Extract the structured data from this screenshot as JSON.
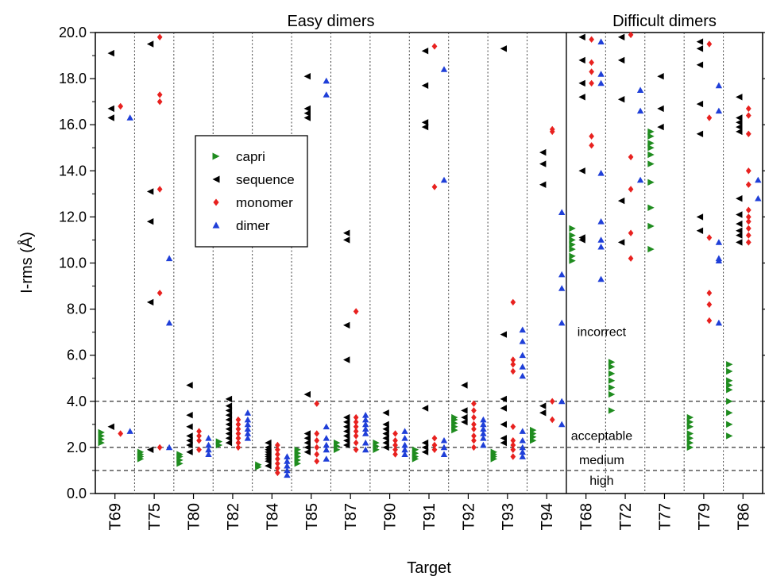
{
  "chart_data": {
    "type": "scatter",
    "xlabel": "Target",
    "ylabel": "I-rms (Å)",
    "ylim": [
      0,
      20
    ],
    "yticks": [
      "0.0",
      "2.0",
      "4.0",
      "6.0",
      "8.0",
      "10.0",
      "12.0",
      "14.0",
      "16.0",
      "18.0",
      "20.0"
    ],
    "categories": [
      "T69",
      "T75",
      "T80",
      "T82",
      "T84",
      "T85",
      "T87",
      "T90",
      "T91",
      "T92",
      "T93",
      "T94",
      "T68",
      "T72",
      "T77",
      "T79",
      "T86"
    ],
    "groups": [
      {
        "label": "Easy dimers",
        "categories": [
          "T69",
          "T75",
          "T80",
          "T82",
          "T84",
          "T85",
          "T87",
          "T90",
          "T91",
          "T92",
          "T93",
          "T94"
        ]
      },
      {
        "label": "Difficult dimers",
        "categories": [
          "T68",
          "T72",
          "T77",
          "T79",
          "T86"
        ]
      }
    ],
    "thresholds": [
      {
        "value": 4.0,
        "label": "acceptable"
      },
      {
        "value": 2.0,
        "label": "medium"
      },
      {
        "value": 1.0,
        "label": "high"
      }
    ],
    "region_labels": [
      {
        "label": "incorrect",
        "y": 7.0
      },
      {
        "label": "acceptable",
        "y": 2.5
      },
      {
        "label": "medium",
        "y": 1.45
      },
      {
        "label": "high",
        "y": 0.55
      }
    ],
    "legend": {
      "position": "upper-left"
    },
    "series": [
      {
        "name": "capri",
        "color": "#1f8c1f",
        "marker": "triangle-right",
        "data": {
          "T69": [
            2.2,
            2.35,
            2.5,
            2.65
          ],
          "T75": [
            1.5,
            1.6,
            1.7,
            1.8
          ],
          "T80": [
            1.3,
            1.45,
            1.6,
            1.7
          ],
          "T82": [
            2.1,
            2.25
          ],
          "T84": [
            1.15,
            1.25
          ],
          "T85": [
            1.3,
            1.45,
            1.6,
            1.75,
            1.9
          ],
          "T87": [
            1.9,
            2.05,
            2.2
          ],
          "T90": [
            1.9,
            2.05,
            2.2
          ],
          "T91": [
            1.5,
            1.6,
            1.75,
            1.9
          ],
          "T92": [
            2.75,
            2.9,
            3.05,
            3.2,
            3.3
          ],
          "T93": [
            1.5,
            1.6,
            1.7,
            1.8
          ],
          "T94": [
            2.3,
            2.45,
            2.6,
            2.75
          ],
          "T68": [
            10.1,
            10.3,
            10.6,
            10.8,
            11.0,
            11.2,
            11.5
          ],
          "T72": [
            3.6,
            4.3,
            4.6,
            4.9,
            5.2,
            5.5,
            5.7
          ],
          "T77": [
            10.6,
            11.6,
            12.4,
            13.5,
            14.3,
            14.7,
            15.0,
            15.2,
            15.5,
            15.7
          ],
          "T79": [
            2.0,
            2.2,
            2.4,
            2.6,
            2.9,
            3.1,
            3.3
          ],
          "T86": [
            2.5,
            3.0,
            3.5,
            4.0,
            4.5,
            4.7,
            4.9,
            5.3,
            5.6
          ]
        }
      },
      {
        "name": "sequence",
        "color": "#000000",
        "marker": "triangle-left",
        "data": {
          "T69": [
            2.9,
            16.3,
            16.7,
            19.1
          ],
          "T75": [
            1.9,
            8.3,
            11.8,
            13.1,
            19.5
          ],
          "T80": [
            1.8,
            2.1,
            2.3,
            2.5,
            2.9,
            3.4,
            4.7
          ],
          "T82": [
            2.2,
            2.4,
            2.6,
            2.8,
            3.0,
            3.2,
            3.4,
            3.6,
            3.8,
            4.1
          ],
          "T84": [
            1.2,
            1.4,
            1.5,
            1.6,
            1.7,
            1.8,
            1.9,
            2.0,
            2.2
          ],
          "T85": [
            1.8,
            2.0,
            2.2,
            2.4,
            2.6,
            4.3,
            16.3,
            16.5,
            16.7,
            18.1
          ],
          "T87": [
            2.1,
            2.3,
            2.5,
            2.7,
            2.9,
            3.1,
            3.3,
            5.8,
            7.3,
            11.0,
            11.3
          ],
          "T90": [
            2.0,
            2.2,
            2.4,
            2.6,
            2.8,
            3.0,
            3.5
          ],
          "T91": [
            1.8,
            2.0,
            2.2,
            3.7,
            15.9,
            16.1,
            17.7,
            19.2
          ],
          "T92": [
            3.1,
            3.3,
            3.6,
            4.7
          ],
          "T93": [
            2.2,
            2.4,
            3.0,
            3.7,
            4.1,
            6.9,
            19.3
          ],
          "T94": [
            3.5,
            3.8,
            13.4,
            14.3,
            14.8
          ],
          "T68": [
            11.0,
            11.1,
            14.0,
            17.2,
            17.8,
            18.8,
            19.8
          ],
          "T72": [
            10.9,
            12.7,
            17.1,
            18.8,
            19.8
          ],
          "T77": [
            15.9,
            16.7,
            18.1
          ],
          "T79": [
            11.4,
            12.0,
            15.6,
            16.9,
            18.6,
            19.3,
            19.6
          ],
          "T86": [
            10.9,
            11.2,
            11.4,
            11.7,
            12.1,
            12.8,
            15.7,
            15.9,
            16.1,
            16.3,
            17.2
          ]
        }
      },
      {
        "name": "monomer",
        "color": "#e8211f",
        "marker": "diamond",
        "data": {
          "T69": [
            2.6,
            16.8
          ],
          "T75": [
            2.0,
            8.7,
            13.2,
            17.0,
            17.3,
            19.8
          ],
          "T80": [
            1.9,
            2.3,
            2.5,
            2.7
          ],
          "T82": [
            2.0,
            2.2,
            2.4,
            2.6,
            2.8,
            3.0,
            3.2
          ],
          "T84": [
            0.9,
            1.1,
            1.3,
            1.5,
            1.7,
            1.9,
            2.1
          ],
          "T85": [
            1.4,
            1.7,
            2.0,
            2.3,
            2.6,
            3.9
          ],
          "T87": [
            1.9,
            2.2,
            2.5,
            2.7,
            2.9,
            3.1,
            3.3,
            7.9
          ],
          "T90": [
            1.7,
            1.9,
            2.1,
            2.3,
            2.6
          ],
          "T91": [
            1.9,
            2.1,
            2.4,
            13.3,
            19.4
          ],
          "T92": [
            2.0,
            2.3,
            2.5,
            2.8,
            3.0,
            3.3,
            3.6,
            3.9
          ],
          "T93": [
            1.6,
            1.9,
            2.1,
            2.3,
            2.9,
            5.3,
            5.6,
            5.8,
            8.3
          ],
          "T94": [
            3.2,
            4.0,
            15.7,
            15.8
          ],
          "T68": [
            15.1,
            15.5,
            17.8,
            18.3,
            18.7,
            19.7
          ],
          "T72": [
            10.2,
            11.3,
            13.2,
            14.6,
            19.9
          ],
          "T79": [
            7.5,
            8.2,
            8.7,
            11.1,
            16.3,
            19.5
          ],
          "T86": [
            10.9,
            11.2,
            11.5,
            11.8,
            12.0,
            12.3,
            13.4,
            14.0,
            15.6,
            16.4,
            16.7
          ]
        }
      },
      {
        "name": "dimer",
        "color": "#1f3fd8",
        "marker": "triangle-up",
        "data": {
          "T69": [
            2.7,
            16.3
          ],
          "T75": [
            2.0,
            7.4,
            10.2
          ],
          "T80": [
            1.7,
            1.9,
            2.1,
            2.4
          ],
          "T82": [
            2.4,
            2.6,
            2.8,
            3.0,
            3.2,
            3.5
          ],
          "T84": [
            0.8,
            1.0,
            1.2,
            1.4,
            1.6
          ],
          "T85": [
            1.5,
            1.9,
            2.1,
            2.4,
            2.9,
            17.3,
            17.9
          ],
          "T87": [
            1.9,
            2.2,
            2.6,
            2.8,
            3.0,
            3.2,
            3.4
          ],
          "T90": [
            1.7,
            1.9,
            2.1,
            2.4,
            2.7
          ],
          "T91": [
            1.7,
            2.0,
            2.3,
            13.6,
            18.4
          ],
          "T92": [
            2.1,
            2.4,
            2.6,
            2.8,
            3.0,
            3.2
          ],
          "T93": [
            1.6,
            1.8,
            2.0,
            2.3,
            2.7,
            5.1,
            5.5,
            6.0,
            6.6,
            7.1
          ],
          "T94": [
            3.0,
            4.0,
            7.4,
            8.9,
            9.5,
            12.2
          ],
          "T68": [
            9.3,
            10.7,
            11.0,
            11.8,
            13.9,
            17.8,
            18.2,
            19.6
          ],
          "T72": [
            13.6,
            16.6,
            17.5
          ],
          "T79": [
            7.4,
            10.1,
            10.2,
            10.9,
            16.6,
            17.7
          ],
          "T86": [
            12.8,
            13.6
          ]
        }
      }
    ]
  }
}
